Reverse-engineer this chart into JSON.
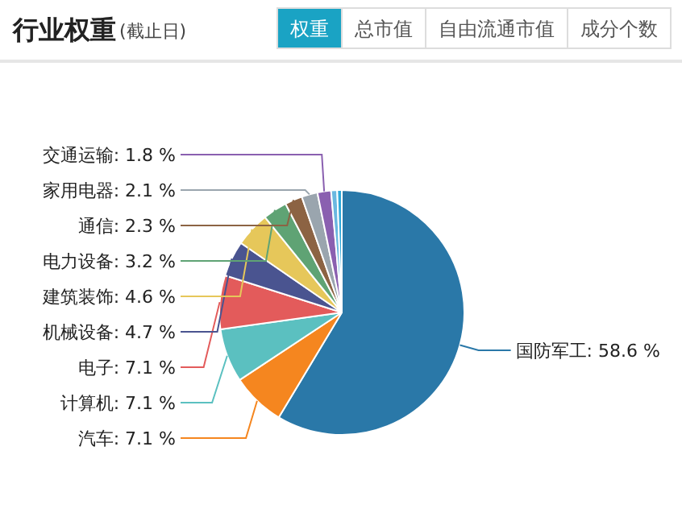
{
  "chart_data": {
    "type": "pie",
    "title": "行业权重",
    "subtitle": "(截止日)",
    "annotations": [
      "权重",
      "总市值",
      "自由流通市值",
      "成分个数"
    ],
    "categories": [
      "国防军工",
      "汽车",
      "计算机",
      "电子",
      "机械设备",
      "建筑装饰",
      "电力设备",
      "通信",
      "家用电器",
      "交通运输",
      null,
      null
    ],
    "values": [
      58.6,
      7.1,
      7.1,
      7.1,
      4.7,
      4.6,
      3.2,
      2.3,
      2.1,
      1.8,
      0.8,
      0.6
    ],
    "value_labels": [
      "58.6 %",
      "7.1 %",
      "7.1 %",
      "7.1 %",
      "4.7 %",
      "4.6 %",
      "3.2 %",
      "2.3 %",
      "2.1 %",
      "1.8 %",
      null,
      null
    ],
    "colors": [
      "#2a78a8",
      "#f5861f",
      "#5bc0c0",
      "#e35b5b",
      "#4a5490",
      "#e6c75a",
      "#5fa374",
      "#8c6343",
      "#9aa5ae",
      "#8a60b0",
      "#6ab8e0",
      "#2fa8d8"
    ]
  }
}
